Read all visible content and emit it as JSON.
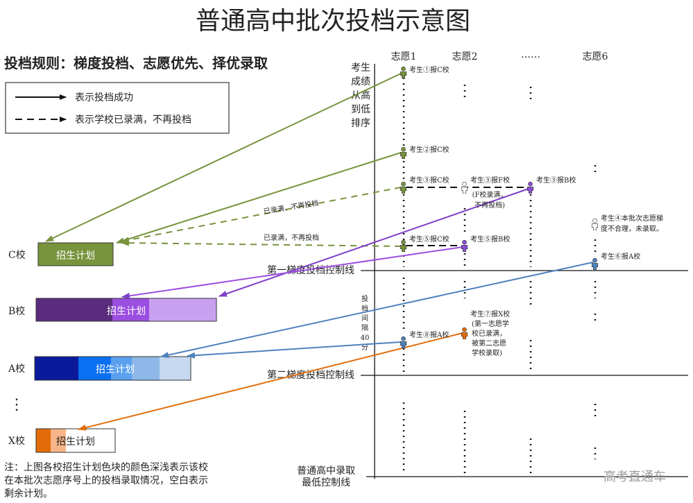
{
  "title": "普通高中批次投档示意图",
  "rule": "投档规则：梯度投档、志愿优先、择优录取",
  "legend": [
    "表示投档成功",
    "表示学校已录满，不再投档"
  ],
  "columns": [
    "志愿1",
    "志愿2",
    "……",
    "志愿6"
  ],
  "axis_label": [
    "考生",
    "成绩",
    "从高",
    "到低",
    "排序"
  ],
  "control_lines": {
    "first": "第一梯度投档控制线",
    "second": "第二梯度投档控制线",
    "lowest": [
      "普通高中录取",
      "最低控制线"
    ]
  },
  "interval": [
    "投",
    "档",
    "间",
    "隔",
    "40",
    "分"
  ],
  "arrow_labels": [
    "已录满，不再投档",
    "已录满，不再投档"
  ],
  "students": {
    "s1": "考生①报C校",
    "s2": "考生②报C校",
    "s3c": "考生③报C校",
    "s3f": "考生③报F校",
    "f_full": [
      "(F校录满，",
      "不再投档)"
    ],
    "s3b": "考生③报B校",
    "s4": [
      "考生④本批次志愿梯",
      "度不合理，未录取。"
    ],
    "s5c": "考生⑤报C校",
    "s5b": "考生⑤报B校",
    "s6": "考生⑥报A校",
    "s7": [
      "考生⑦报X校",
      "(第一志愿学",
      "校已录满，",
      "被第二志愿",
      "学校录取)"
    ],
    "s8": "考生⑧报A校"
  },
  "schools": [
    {
      "name": "C校",
      "plan": "招生计划"
    },
    {
      "name": "B校",
      "plan": "招生计划"
    },
    {
      "name": "A校",
      "plan": "招生计划"
    },
    {
      "name": "X校",
      "plan": "招生计划"
    }
  ],
  "schools_more": "⋮",
  "note": [
    "注：上图各校招生计划色块的颜色深浅表示该校",
    "在本批次志愿序号上的投档录取情况，空白表示",
    "剩余计划。"
  ],
  "watermark": "高考直通车"
}
